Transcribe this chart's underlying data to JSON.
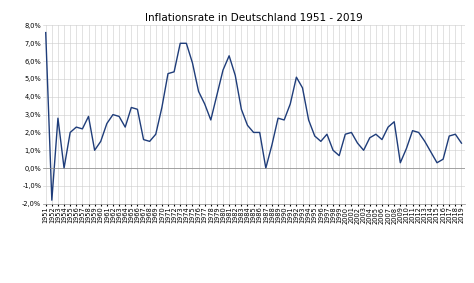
{
  "title": "Inflationsrate in Deutschland 1951 - 2019",
  "years": [
    1951,
    1952,
    1953,
    1954,
    1955,
    1956,
    1957,
    1958,
    1959,
    1960,
    1961,
    1962,
    1963,
    1964,
    1965,
    1966,
    1967,
    1968,
    1969,
    1970,
    1971,
    1972,
    1973,
    1974,
    1975,
    1976,
    1977,
    1978,
    1979,
    1980,
    1981,
    1982,
    1983,
    1984,
    1985,
    1986,
    1987,
    1988,
    1989,
    1990,
    1991,
    1992,
    1993,
    1994,
    1995,
    1996,
    1997,
    1998,
    1999,
    2000,
    2001,
    2002,
    2003,
    2004,
    2005,
    2006,
    2007,
    2008,
    2009,
    2010,
    2011,
    2012,
    2013,
    2014,
    2015,
    2016,
    2017,
    2018,
    2019
  ],
  "values": [
    7.6,
    -1.8,
    2.8,
    0.0,
    2.0,
    2.3,
    2.2,
    2.9,
    1.0,
    1.5,
    2.5,
    3.0,
    2.9,
    2.3,
    3.4,
    3.3,
    1.6,
    1.5,
    1.9,
    3.4,
    5.3,
    5.4,
    7.0,
    7.0,
    5.9,
    4.3,
    3.6,
    2.7,
    4.1,
    5.5,
    6.3,
    5.2,
    3.3,
    2.4,
    2.0,
    2.0,
    0.0,
    1.3,
    2.8,
    2.7,
    3.6,
    5.1,
    4.5,
    2.7,
    1.8,
    1.5,
    1.9,
    1.0,
    0.7,
    1.9,
    2.0,
    1.4,
    1.0,
    1.7,
    1.9,
    1.6,
    2.3,
    2.6,
    0.3,
    1.1,
    2.1,
    2.0,
    1.5,
    0.9,
    0.3,
    0.5,
    1.8,
    1.9,
    1.4
  ],
  "line_color": "#1f3d7a",
  "line_width": 1.0,
  "background_color": "#ffffff",
  "grid_color": "#cccccc",
  "ylim": [
    -2.0,
    8.0
  ],
  "ytick_step": 1.0,
  "title_fontsize": 7.5,
  "tick_fontsize": 4.8
}
